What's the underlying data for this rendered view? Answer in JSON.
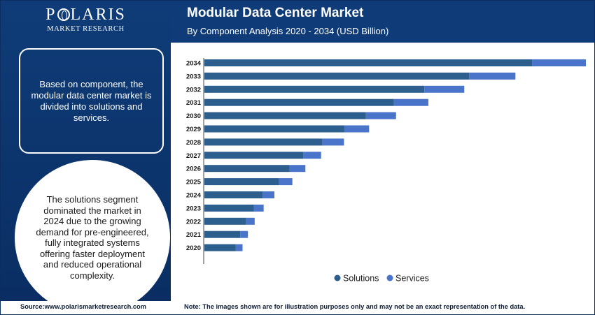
{
  "brand": {
    "name_left": "P",
    "name_right": "LARIS",
    "subtitle": "MARKET RESEARCH"
  },
  "header": {
    "title": "Modular Data Center Market",
    "subtitle": "By Component Analysis 2020 - 2034 (USD Billion)"
  },
  "notes": {
    "box": "Based on component, the modular data center market is divided into solutions and services.",
    "circle": "The solutions segment dominated the market in 2024 due to the growing demand for pre-engineered, fully integrated systems offering faster deployment and reduced operational complexity."
  },
  "footer": {
    "source": "Source:www.polarismarketresearch.com",
    "note": "Note: The images shown are for illustration purposes only and may not be an exact representation of the data."
  },
  "colors": {
    "header_bg": "#0f3c78",
    "solutions": "#2c5f8e",
    "services": "#4a74c9"
  },
  "chart_data": {
    "type": "bar",
    "orientation": "horizontal",
    "stacked": true,
    "categories": [
      "2034",
      "2033",
      "2032",
      "2031",
      "2030",
      "2029",
      "2028",
      "2027",
      "2026",
      "2025",
      "2024",
      "2023",
      "2022",
      "2021",
      "2020"
    ],
    "series": [
      {
        "name": "Solutions",
        "values": [
          73.0,
          59.0,
          49.0,
          42.2,
          36.0,
          31.2,
          26.3,
          22.0,
          19.0,
          16.6,
          13.0,
          11.0,
          9.2,
          8.0,
          7.0
        ]
      },
      {
        "name": "Services",
        "values": [
          12.0,
          10.3,
          8.9,
          7.7,
          6.7,
          5.5,
          4.8,
          4.0,
          3.5,
          3.0,
          2.6,
          2.2,
          2.0,
          1.7,
          1.5
        ]
      }
    ],
    "xlim": [
      0,
      85
    ],
    "grid": false,
    "legend": "bottom-center"
  }
}
